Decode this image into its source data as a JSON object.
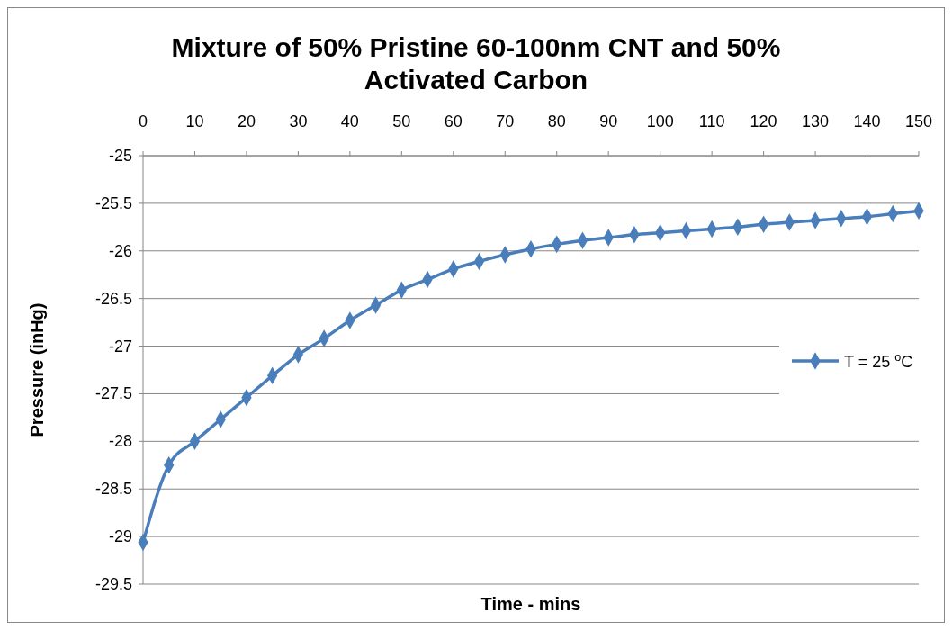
{
  "chart_data": {
    "type": "line",
    "title": "Mixture of 50% Pristine 60-100nm CNT and 50% Activated Carbon",
    "xlabel": "Time - mins",
    "ylabel": "Pressure (inHg)",
    "series": [
      {
        "name": "T = 25 $^{o}$C",
        "color": "#4a7ebb",
        "x": [
          0,
          5,
          10,
          15,
          20,
          25,
          30,
          35,
          40,
          45,
          50,
          55,
          60,
          65,
          70,
          75,
          80,
          85,
          90,
          95,
          100,
          105,
          110,
          115,
          120,
          125,
          130,
          135,
          140,
          145,
          150
        ],
        "values": [
          -29.06,
          -28.25,
          -28.0,
          -27.77,
          -27.54,
          -27.31,
          -27.09,
          -26.92,
          -26.73,
          -26.57,
          -26.41,
          -26.3,
          -26.19,
          -26.11,
          -26.04,
          -25.98,
          -25.93,
          -25.89,
          -25.86,
          -25.83,
          -25.81,
          -25.79,
          -25.77,
          -25.75,
          -25.72,
          -25.7,
          -25.68,
          -25.66,
          -25.64,
          -25.61,
          -25.58
        ]
      }
    ],
    "xlim": [
      0,
      150
    ],
    "xticks": [
      0,
      10,
      20,
      30,
      40,
      50,
      60,
      70,
      80,
      90,
      100,
      110,
      120,
      130,
      140,
      150
    ],
    "ylim": [
      -29.5,
      -25
    ],
    "yticks": [
      -29.5,
      -29,
      -28.5,
      -28,
      -27.5,
      -27,
      -26.5,
      -26,
      -25.5,
      -25
    ],
    "grid": "y",
    "legend": "right",
    "marker": "diamond",
    "line_style": "solid"
  }
}
